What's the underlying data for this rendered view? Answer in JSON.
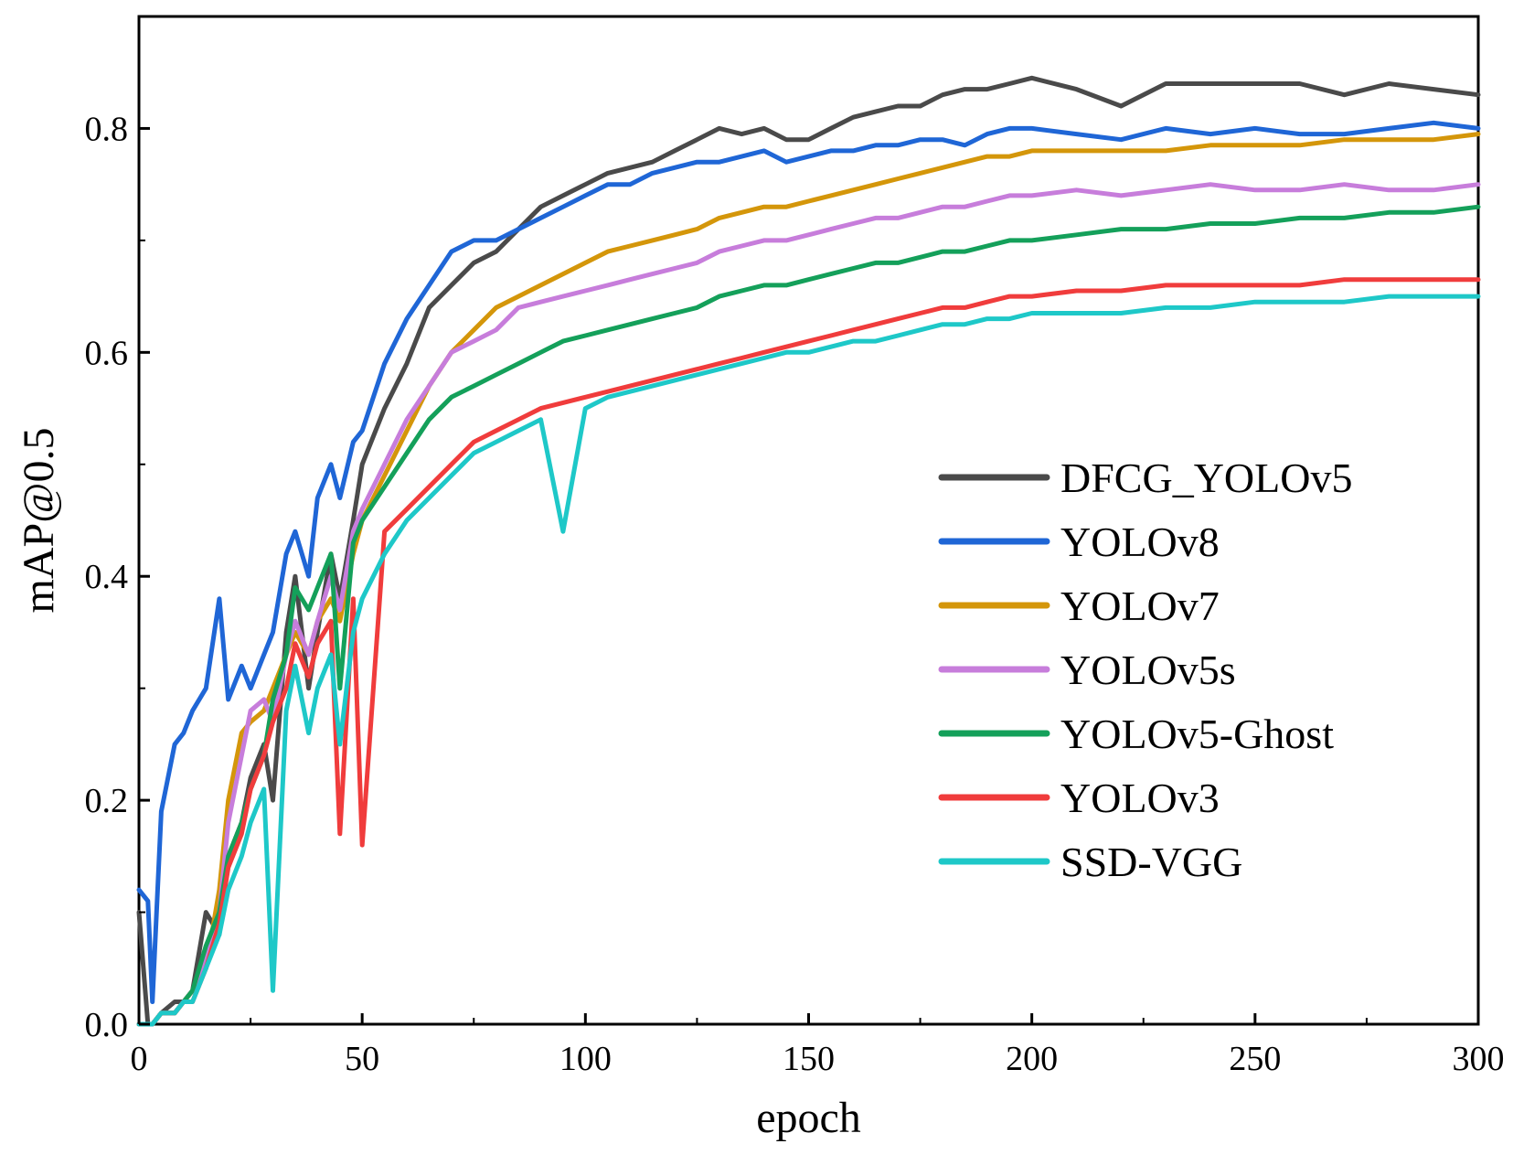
{
  "chart_data": {
    "type": "line",
    "xlabel": "epoch",
    "ylabel": "mAP@0.5",
    "xlim": [
      0,
      300
    ],
    "ylim": [
      0,
      0.9
    ],
    "xticks": [
      0,
      50,
      100,
      150,
      200,
      250,
      300
    ],
    "xtick_labels": [
      "0",
      "50",
      "100",
      "150",
      "200",
      "250",
      "300"
    ],
    "yticks": [
      0.0,
      0.2,
      0.4,
      0.6,
      0.8
    ],
    "ytick_labels": [
      "0.0",
      "0.2",
      "0.4",
      "0.6",
      "0.8"
    ],
    "grid": false,
    "legend_position": "center-right",
    "x": [
      0,
      2,
      3,
      5,
      8,
      10,
      12,
      15,
      18,
      20,
      23,
      25,
      28,
      30,
      33,
      35,
      38,
      40,
      43,
      45,
      48,
      50,
      55,
      60,
      65,
      70,
      75,
      80,
      85,
      90,
      95,
      100,
      105,
      110,
      115,
      120,
      125,
      130,
      135,
      140,
      145,
      150,
      155,
      160,
      165,
      170,
      175,
      180,
      185,
      190,
      195,
      200,
      210,
      220,
      230,
      240,
      250,
      260,
      270,
      280,
      290,
      300
    ],
    "series": [
      {
        "name": "DFCG_YOLOv5",
        "color": "#4a4a4a",
        "values": [
          0.1,
          0.0,
          0.0,
          0.01,
          0.02,
          0.02,
          0.03,
          0.1,
          0.08,
          0.15,
          0.18,
          0.22,
          0.25,
          0.2,
          0.35,
          0.4,
          0.3,
          0.35,
          0.42,
          0.38,
          0.45,
          0.5,
          0.55,
          0.59,
          0.64,
          0.66,
          0.68,
          0.69,
          0.71,
          0.73,
          0.74,
          0.75,
          0.76,
          0.765,
          0.77,
          0.78,
          0.79,
          0.8,
          0.795,
          0.8,
          0.79,
          0.79,
          0.8,
          0.81,
          0.815,
          0.82,
          0.82,
          0.83,
          0.835,
          0.835,
          0.84,
          0.845,
          0.835,
          0.82,
          0.84,
          0.84,
          0.84,
          0.84,
          0.83,
          0.84,
          0.835,
          0.83
        ]
      },
      {
        "name": "YOLOv8",
        "color": "#1f66d6",
        "values": [
          0.12,
          0.11,
          0.02,
          0.19,
          0.25,
          0.26,
          0.28,
          0.3,
          0.38,
          0.29,
          0.32,
          0.3,
          0.33,
          0.35,
          0.42,
          0.44,
          0.4,
          0.47,
          0.5,
          0.47,
          0.52,
          0.53,
          0.59,
          0.63,
          0.66,
          0.69,
          0.7,
          0.7,
          0.71,
          0.72,
          0.73,
          0.74,
          0.75,
          0.75,
          0.76,
          0.765,
          0.77,
          0.77,
          0.775,
          0.78,
          0.77,
          0.775,
          0.78,
          0.78,
          0.785,
          0.785,
          0.79,
          0.79,
          0.785,
          0.795,
          0.8,
          0.8,
          0.795,
          0.79,
          0.8,
          0.795,
          0.8,
          0.795,
          0.795,
          0.8,
          0.805,
          0.8
        ]
      },
      {
        "name": "YOLOv7",
        "color": "#d4960a",
        "values": [
          0.0,
          0.0,
          0.0,
          0.01,
          0.01,
          0.02,
          0.03,
          0.05,
          0.12,
          0.2,
          0.26,
          0.27,
          0.28,
          0.3,
          0.33,
          0.35,
          0.33,
          0.36,
          0.38,
          0.36,
          0.42,
          0.45,
          0.49,
          0.53,
          0.57,
          0.6,
          0.62,
          0.64,
          0.65,
          0.66,
          0.67,
          0.68,
          0.69,
          0.695,
          0.7,
          0.705,
          0.71,
          0.72,
          0.725,
          0.73,
          0.73,
          0.735,
          0.74,
          0.745,
          0.75,
          0.755,
          0.76,
          0.765,
          0.77,
          0.775,
          0.775,
          0.78,
          0.78,
          0.78,
          0.78,
          0.785,
          0.785,
          0.785,
          0.79,
          0.79,
          0.79,
          0.795
        ]
      },
      {
        "name": "YOLOv5s",
        "color": "#c77ddb",
        "values": [
          0.0,
          0.0,
          0.0,
          0.01,
          0.01,
          0.02,
          0.03,
          0.06,
          0.1,
          0.18,
          0.24,
          0.28,
          0.29,
          0.27,
          0.33,
          0.36,
          0.33,
          0.36,
          0.4,
          0.37,
          0.44,
          0.46,
          0.5,
          0.54,
          0.57,
          0.6,
          0.61,
          0.62,
          0.64,
          0.645,
          0.65,
          0.655,
          0.66,
          0.665,
          0.67,
          0.675,
          0.68,
          0.69,
          0.695,
          0.7,
          0.7,
          0.705,
          0.71,
          0.715,
          0.72,
          0.72,
          0.725,
          0.73,
          0.73,
          0.735,
          0.74,
          0.74,
          0.745,
          0.74,
          0.745,
          0.75,
          0.745,
          0.745,
          0.75,
          0.745,
          0.745,
          0.75
        ]
      },
      {
        "name": "YOLOv5-Ghost",
        "color": "#14a05a",
        "values": [
          0.0,
          0.0,
          0.0,
          0.01,
          0.01,
          0.02,
          0.03,
          0.07,
          0.1,
          0.15,
          0.18,
          0.21,
          0.24,
          0.29,
          0.33,
          0.39,
          0.37,
          0.39,
          0.42,
          0.3,
          0.43,
          0.45,
          0.48,
          0.51,
          0.54,
          0.56,
          0.57,
          0.58,
          0.59,
          0.6,
          0.61,
          0.615,
          0.62,
          0.625,
          0.63,
          0.635,
          0.64,
          0.65,
          0.655,
          0.66,
          0.66,
          0.665,
          0.67,
          0.675,
          0.68,
          0.68,
          0.685,
          0.69,
          0.69,
          0.695,
          0.7,
          0.7,
          0.705,
          0.71,
          0.71,
          0.715,
          0.715,
          0.72,
          0.72,
          0.725,
          0.725,
          0.73
        ]
      },
      {
        "name": "YOLOv3",
        "color": "#f03c3c",
        "values": [
          0.0,
          0.0,
          0.0,
          0.01,
          0.01,
          0.02,
          0.02,
          0.05,
          0.09,
          0.14,
          0.17,
          0.21,
          0.24,
          0.27,
          0.3,
          0.34,
          0.31,
          0.34,
          0.36,
          0.17,
          0.38,
          0.16,
          0.44,
          0.46,
          0.48,
          0.5,
          0.52,
          0.53,
          0.54,
          0.55,
          0.555,
          0.56,
          0.565,
          0.57,
          0.575,
          0.58,
          0.585,
          0.59,
          0.595,
          0.6,
          0.605,
          0.61,
          0.615,
          0.62,
          0.625,
          0.63,
          0.635,
          0.64,
          0.64,
          0.645,
          0.65,
          0.65,
          0.655,
          0.655,
          0.66,
          0.66,
          0.66,
          0.66,
          0.665,
          0.665,
          0.665,
          0.665
        ]
      },
      {
        "name": "SSD-VGG",
        "color": "#1ec8c8",
        "values": [
          0.0,
          0.0,
          0.0,
          0.01,
          0.01,
          0.02,
          0.02,
          0.05,
          0.08,
          0.12,
          0.15,
          0.18,
          0.21,
          0.03,
          0.28,
          0.32,
          0.26,
          0.3,
          0.33,
          0.25,
          0.35,
          0.38,
          0.42,
          0.45,
          0.47,
          0.49,
          0.51,
          0.52,
          0.53,
          0.54,
          0.44,
          0.55,
          0.56,
          0.565,
          0.57,
          0.575,
          0.58,
          0.585,
          0.59,
          0.595,
          0.6,
          0.6,
          0.605,
          0.61,
          0.61,
          0.615,
          0.62,
          0.625,
          0.625,
          0.63,
          0.63,
          0.635,
          0.635,
          0.635,
          0.64,
          0.64,
          0.645,
          0.645,
          0.645,
          0.65,
          0.65,
          0.65
        ]
      }
    ]
  }
}
